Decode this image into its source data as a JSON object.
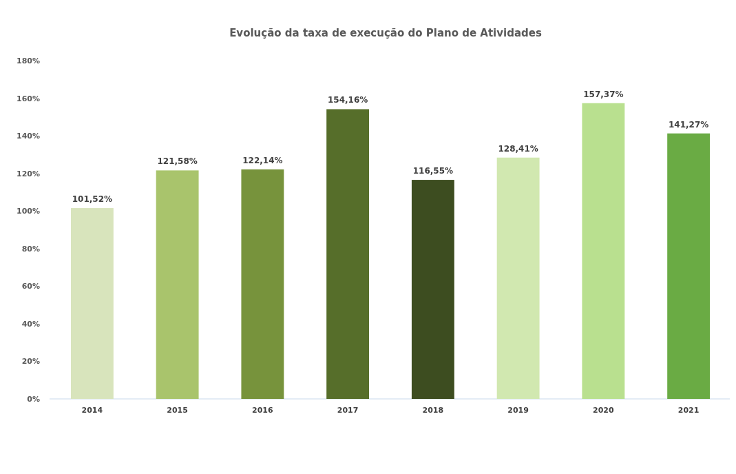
{
  "chart_data": {
    "type": "bar",
    "title": "Evolução da taxa de execução do Plano de Atividades",
    "categories": [
      "2014",
      "2015",
      "2016",
      "2017",
      "2018",
      "2019",
      "2020",
      "2021"
    ],
    "values": [
      101.52,
      121.58,
      122.14,
      154.16,
      116.55,
      128.41,
      157.37,
      141.27
    ],
    "value_labels": [
      "101,52%",
      "121,58%",
      "122,14%",
      "154,16%",
      "116,55%",
      "128,41%",
      "157,37%",
      "141,27%"
    ],
    "colors": [
      "#d8e4bc",
      "#a9c46c",
      "#77933c",
      "#566e2a",
      "#3d4d20",
      "#d1e8b0",
      "#b9e08f",
      "#6aab44"
    ],
    "ylim": [
      0,
      180
    ],
    "yticks": [
      {
        "value": 0,
        "label": "0%"
      },
      {
        "value": 20,
        "label": "20%"
      },
      {
        "value": 40,
        "label": "40%"
      },
      {
        "value": 60,
        "label": "60%"
      },
      {
        "value": 80,
        "label": "80%"
      },
      {
        "value": 100,
        "label": "100%"
      },
      {
        "value": 120,
        "label": "120%"
      },
      {
        "value": 140,
        "label": "140%"
      },
      {
        "value": 160,
        "label": "160%"
      },
      {
        "value": 180,
        "label": "180%"
      }
    ],
    "grid": false
  }
}
